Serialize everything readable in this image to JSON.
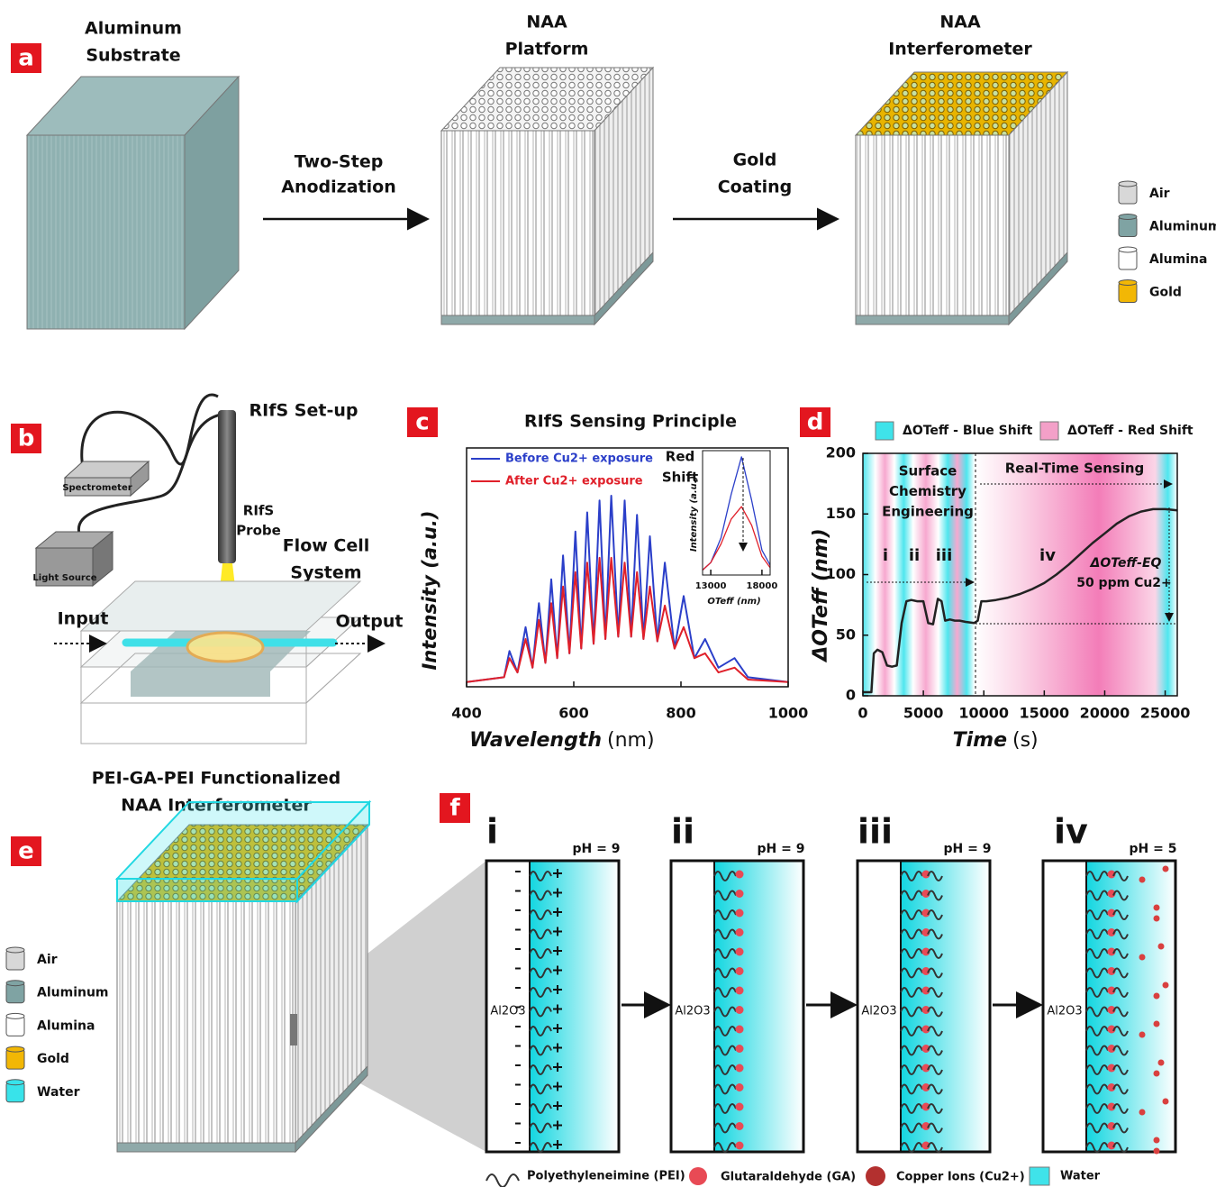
{
  "panel_labels": [
    "a",
    "b",
    "c",
    "d",
    "e",
    "f"
  ],
  "panel_a": {
    "aluminum_title": [
      "Aluminum",
      "Substrate"
    ],
    "step1": [
      "Two-Step",
      "Anodization"
    ],
    "platform_title": [
      "NAA",
      "Platform"
    ],
    "step2": [
      "Gold",
      "Coating"
    ],
    "interferometer_title": [
      "NAA",
      "Interferometer"
    ],
    "legend": [
      "Air",
      "Aluminum",
      "Alumina",
      "Gold"
    ]
  },
  "panel_b": {
    "title": "RIfS Set-up",
    "spectrometer": "Spectrometer",
    "light_source": "Light Source",
    "probe": [
      "RIfS",
      "Probe"
    ],
    "flow_cell": [
      "Flow Cell",
      "System"
    ],
    "input": "Input",
    "output": "Output"
  },
  "panel_e": {
    "title": [
      "PEI-GA-PEI Functionalized",
      "NAA Interferometer"
    ],
    "legend": [
      "Air",
      "Aluminum",
      "Alumina",
      "Gold",
      "Water"
    ]
  },
  "panel_f": {
    "stages": [
      {
        "numeral": "i",
        "ph": "pH = 9"
      },
      {
        "numeral": "ii",
        "ph": "pH = 9"
      },
      {
        "numeral": "iii",
        "ph": "pH = 9"
      },
      {
        "numeral": "iv",
        "ph": "pH = 5"
      }
    ],
    "substrate": "Al2O3",
    "legend": [
      "Polyethyleneimine (PEI)",
      "Glutaraldehyde (GA)",
      "Copper Ions (Cu2+)",
      "Water"
    ]
  },
  "chart_data": [
    {
      "type": "line",
      "title": "RIfS Sensing Principle",
      "x_label": [
        "Wavelength",
        "(nm)"
      ],
      "y_label": "Intensity (a.u.)",
      "x": [
        400,
        470,
        480,
        495,
        510,
        523,
        535,
        547,
        558,
        569,
        580,
        592,
        603,
        614,
        625,
        637,
        648,
        659,
        670,
        683,
        695,
        707,
        718,
        730,
        742,
        756,
        770,
        788,
        805,
        825,
        845,
        870,
        900,
        925,
        1000
      ],
      "series": [
        {
          "name": "Before Cu2+ exposure",
          "color": "#2b3fc9",
          "values": [
            2,
            4,
            15,
            6,
            25,
            8,
            35,
            10,
            45,
            12,
            55,
            14,
            65,
            16,
            73,
            18,
            78,
            20,
            80,
            21,
            78,
            21,
            72,
            20,
            63,
            19,
            52,
            16,
            38,
            12,
            20,
            8,
            12,
            4,
            2
          ]
        },
        {
          "name": "After Cu2+ exposure",
          "color": "#e0202a",
          "values": [
            2,
            4,
            12,
            6,
            20,
            8,
            28,
            10,
            35,
            12,
            42,
            14,
            48,
            16,
            52,
            18,
            54,
            20,
            54,
            21,
            52,
            21,
            48,
            20,
            42,
            19,
            34,
            16,
            25,
            12,
            14,
            6,
            8,
            3,
            2
          ]
        }
      ],
      "xlim": [
        400,
        1000
      ],
      "ylim": [
        0,
        100
      ],
      "xticks": [
        400,
        600,
        800,
        1000
      ],
      "annotation": [
        "Red",
        "Shift"
      ]
    },
    {
      "type": "line",
      "y_label": "Intensity (a.u.)",
      "x_label": "OTeff (nm)",
      "x": [
        12200,
        13000,
        14000,
        15000,
        16000,
        17000,
        18000,
        18800
      ],
      "series": [
        {
          "color": "#2b3fc9",
          "values": [
            4,
            10,
            30,
            65,
            95,
            60,
            20,
            8
          ]
        },
        {
          "color": "#e0202a",
          "values": [
            4,
            10,
            25,
            45,
            55,
            40,
            15,
            6
          ]
        }
      ],
      "xlim": [
        12200,
        18800
      ],
      "ylim": [
        0,
        100
      ],
      "xticks": [
        13000,
        18000
      ]
    },
    {
      "type": "line",
      "y_label": "ΔOTeff (nm)",
      "x_label": [
        "Time",
        "(s)"
      ],
      "x": [
        0,
        300,
        700,
        900,
        1200,
        1600,
        2000,
        2400,
        2800,
        3200,
        3600,
        4000,
        4500,
        5000,
        5400,
        5800,
        6200,
        6500,
        6800,
        7200,
        7600,
        8000,
        8500,
        9200,
        9500,
        9800,
        10200,
        11000,
        12000,
        13000,
        14000,
        15000,
        16000,
        17000,
        18000,
        19000,
        20000,
        21000,
        22000,
        23000,
        24000,
        25000,
        26000
      ],
      "series": [
        {
          "color": "#222222",
          "values": [
            3,
            3,
            3,
            35,
            38,
            36,
            25,
            24,
            25,
            60,
            78,
            79,
            78,
            78,
            60,
            59,
            80,
            78,
            62,
            63,
            62,
            62,
            61,
            60,
            62,
            78,
            78,
            79,
            81,
            84,
            88,
            93,
            100,
            108,
            117,
            126,
            134,
            142,
            148,
            152,
            154,
            154,
            153
          ]
        }
      ],
      "xlim": [
        0,
        26000
      ],
      "ylim": [
        0,
        200
      ],
      "xticks": [
        0,
        5000,
        10000,
        15000,
        20000,
        25000
      ],
      "yticks": [
        0,
        50,
        100,
        150,
        200
      ],
      "legend": [
        {
          "label": "ΔOTeff - Blue Shift",
          "color": "#3fe3ea"
        },
        {
          "label": "ΔOTeff - Red Shift",
          "color": "#f3a0c8"
        }
      ],
      "annotations": {
        "stage1": [
          "Surface",
          "Chemistry",
          "Engineering"
        ],
        "stage2": "Real-Time Sensing",
        "steps": [
          "i",
          "ii",
          "iii",
          "iv"
        ],
        "shift": [
          "ΔOTeff-EQ",
          "50 ppm Cu2+"
        ]
      }
    }
  ]
}
